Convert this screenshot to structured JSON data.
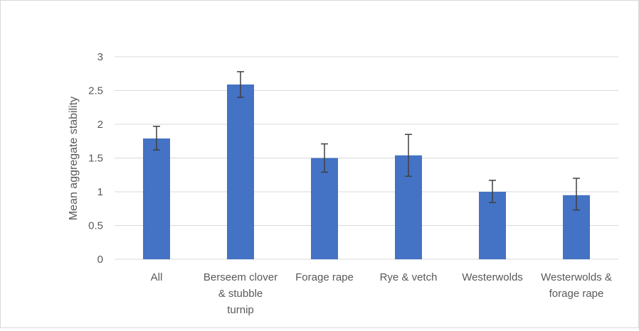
{
  "chart_data": {
    "type": "bar",
    "title": "",
    "xlabel": "",
    "ylabel": "Mean aggregate stability",
    "ylim": [
      0,
      3
    ],
    "yticks": [
      0,
      0.5,
      1,
      1.5,
      2,
      2.5,
      3
    ],
    "ytick_labels": [
      "0",
      "0.5",
      "1",
      "1.5",
      "2",
      "2.5",
      "3"
    ],
    "grid": true,
    "legend": "none",
    "bar_color": "#4472c4",
    "categories": [
      [
        "All"
      ],
      [
        "Berseem clover",
        "& stubble",
        "turnip"
      ],
      [
        "Forage rape"
      ],
      [
        "Rye & vetch"
      ],
      [
        "Westerwolds"
      ],
      [
        "Westerwolds &",
        "forage rape"
      ]
    ],
    "values": [
      1.79,
      2.59,
      1.5,
      1.54,
      1.0,
      0.95
    ],
    "error_low": [
      1.62,
      2.4,
      1.29,
      1.23,
      0.84,
      0.73
    ],
    "error_high": [
      1.97,
      2.78,
      1.71,
      1.85,
      1.17,
      1.2
    ]
  }
}
